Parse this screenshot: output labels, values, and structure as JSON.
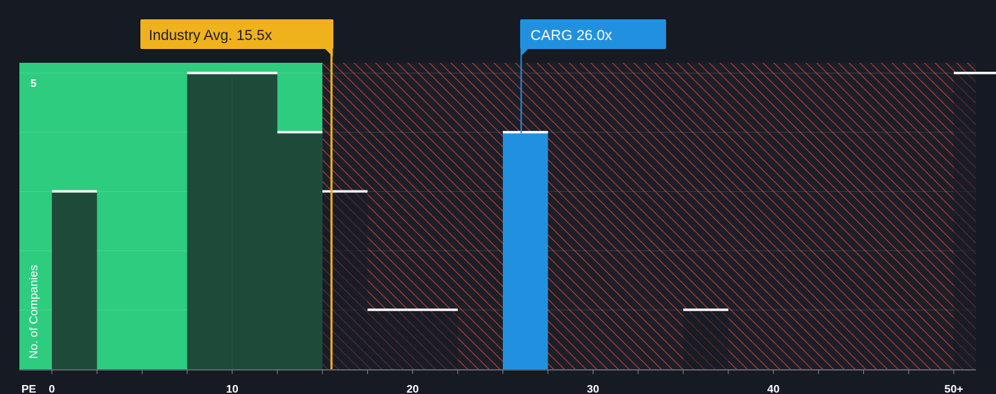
{
  "chart_data": {
    "type": "bar",
    "xlabel": "PE",
    "ylabel": "No. of Companies",
    "x_ticks": [
      "0",
      "10",
      "20",
      "30",
      "40",
      "50+"
    ],
    "y_ticks": [
      "5"
    ],
    "xlim": [
      0,
      51.25
    ],
    "ylim": [
      0,
      5.17
    ],
    "bin_width": 2.5,
    "bars": [
      {
        "x": 0,
        "value": 3
      },
      {
        "x": 7.5,
        "value": 5
      },
      {
        "x": 10,
        "value": 5
      },
      {
        "x": 12.5,
        "value": 4
      },
      {
        "x": 15,
        "value": 3
      },
      {
        "x": 17.5,
        "value": 1
      },
      {
        "x": 20,
        "value": 1
      },
      {
        "x": 25,
        "value": 4,
        "highlight": true
      },
      {
        "x": 35,
        "value": 1
      },
      {
        "x": 50,
        "value": 5
      }
    ],
    "undervalued_region": [
      0,
      15
    ],
    "overvalued_region": [
      15,
      51.25
    ],
    "industry_avg": {
      "label": "Industry Avg. 15.5x",
      "value": 15.5
    },
    "subject": {
      "label": "CARG 26.0x",
      "value": 26.0
    },
    "colors": {
      "background": "#151a23",
      "undervalued": "#2ecc7f",
      "overvalued_hatch": "#c0392b",
      "bar_dark": "#1e4a3a",
      "highlight_bar": "#2191df",
      "industry_callout": "#f0b21c",
      "subject_callout": "#2191df",
      "bar_cap": "#ffffff"
    }
  }
}
